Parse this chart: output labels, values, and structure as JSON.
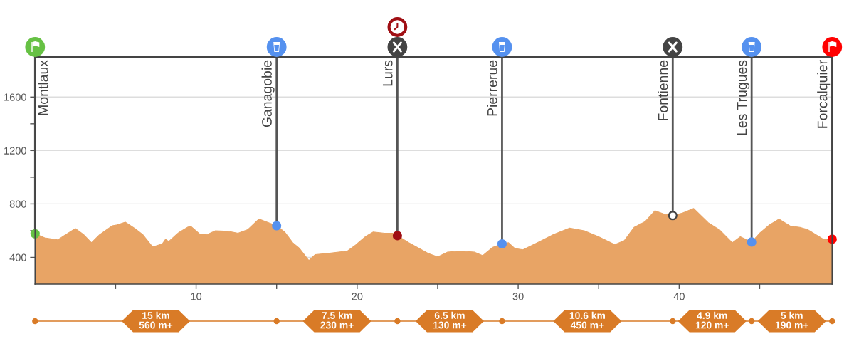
{
  "chart_data": {
    "type": "area",
    "xlim": [
      0,
      49.5
    ],
    "ylim": [
      200,
      1900
    ],
    "xticks": [
      {
        "value": 5,
        "label": null
      },
      10,
      {
        "value": 15,
        "label": null
      },
      20,
      {
        "value": 25,
        "label": null
      },
      30,
      {
        "value": 35,
        "label": null
      },
      40,
      {
        "value": 45,
        "label": null
      }
    ],
    "yticks": [
      400,
      {
        "value": 600,
        "label": null
      },
      800,
      {
        "value": 1000,
        "label": null
      },
      1200,
      {
        "value": 1400,
        "label": null
      },
      1600
    ],
    "grid": "y",
    "series": [
      {
        "color": "#e8a465",
        "x": [
          0,
          0.6,
          1.4,
          1.8,
          2.5,
          3.0,
          3.5,
          4.0,
          4.8,
          5.1,
          5.6,
          6.2,
          6.7,
          7.3,
          7.9,
          8.1,
          8.3,
          8.9,
          9.5,
          9.7,
          10.2,
          10.7,
          11.2,
          12.0,
          12.6,
          13.2,
          13.9,
          14.5,
          15.0,
          15.5,
          16.0,
          16.4,
          17.0,
          17.4,
          18.2,
          19.4,
          19.9,
          20.5,
          21.0,
          21.7,
          22.2,
          22.5,
          23.2,
          24.4,
          25.0,
          25.6,
          26.4,
          27.3,
          27.8,
          28.4,
          29.0,
          29.4,
          29.8,
          30.3,
          31.2,
          32.2,
          33.2,
          34.1,
          35.0,
          36.0,
          36.6,
          37.2,
          37.9,
          38.5,
          39.1,
          39.6,
          40.2,
          40.9,
          41.8,
          42.5,
          43.3,
          43.8,
          44.5,
          45.0,
          45.6,
          46.2,
          46.9,
          47.5,
          48.0,
          48.9,
          49.5
        ],
        "values": [
          577,
          546,
          531,
          563,
          616,
          572,
          510,
          569,
          637,
          643,
          664,
          616,
          569,
          478,
          501,
          536,
          519,
          584,
          628,
          630,
          577,
          572,
          599,
          595,
          581,
          607,
          687,
          660,
          637,
          590,
          510,
          470,
          377,
          421,
          430,
          448,
          492,
          554,
          590,
          581,
          581,
          563,
          510,
          430,
          404,
          439,
          448,
          439,
          413,
          474,
          501,
          510,
          466,
          457,
          510,
          572,
          620,
          599,
          554,
          496,
          527,
          625,
          669,
          749,
          722,
          713,
          731,
          766,
          660,
          607,
          510,
          554,
          515,
          581,
          643,
          687,
          634,
          625,
          607,
          540,
          536
        ]
      },
      {
        "type": "scatter",
        "marker": "circle",
        "x": [
          0,
          15,
          22.5,
          29,
          39.6,
          44.5,
          49.5
        ],
        "values": [
          577,
          637,
          563,
          501,
          713,
          515,
          536
        ],
        "colors": [
          "#66c144",
          "#5591ef",
          "#a00f14",
          "#5591ef",
          "#ffffff",
          "#5591ef",
          "#ff0000"
        ]
      }
    ],
    "annotations": [
      {
        "text": "Montlaux",
        "x": 0,
        "y": 577
      },
      {
        "text": "Ganagobie",
        "x": 15,
        "y": 637
      },
      {
        "text": "Lurs",
        "x": 22.5,
        "y": 563
      },
      {
        "text": "Pierrerue",
        "x": 29,
        "y": 501
      },
      {
        "text": "Fontienne",
        "x": 39.6,
        "y": 713
      },
      {
        "text": "Les Trugues",
        "x": 44.5,
        "y": 515
      },
      {
        "text": "Forcalquier",
        "x": 49.5,
        "y": 536
      },
      "15 km\n560 m+",
      "7.5 km\n230 m+",
      "6.5 km\n130 m+",
      "10.6 km\n450 m+",
      "4.9 km\n120 m+",
      "5 km\n190 m+"
    ]
  }
}
